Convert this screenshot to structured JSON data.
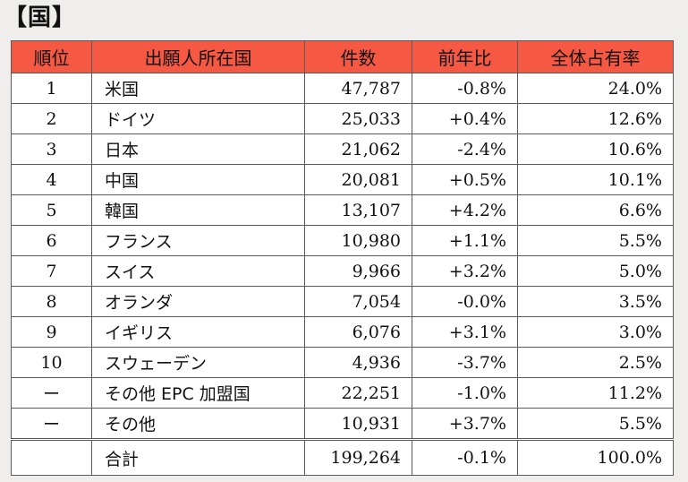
{
  "title": "【国】",
  "headers": [
    "順位",
    "出願人所在国",
    "件数",
    "前年比",
    "全体占有率"
  ],
  "rows": [
    {
      "rank": "1",
      "country": "米国",
      "count": "47,787",
      "yoy": "-0.8%",
      "share": "24.0%"
    },
    {
      "rank": "2",
      "country": "ドイツ",
      "count": "25,033",
      "yoy": "+0.4%",
      "share": "12.6%"
    },
    {
      "rank": "3",
      "country": "日本",
      "count": "21,062",
      "yoy": "-2.4%",
      "share": "10.6%"
    },
    {
      "rank": "4",
      "country": "中国",
      "count": "20,081",
      "yoy": "+0.5%",
      "share": "10.1%"
    },
    {
      "rank": "5",
      "country": "韓国",
      "count": "13,107",
      "yoy": "+4.2%",
      "share": "6.6%"
    },
    {
      "rank": "6",
      "country": "フランス",
      "count": "10,980",
      "yoy": "+1.1%",
      "share": "5.5%"
    },
    {
      "rank": "7",
      "country": "スイス",
      "count": "9,966",
      "yoy": "+3.2%",
      "share": "5.0%"
    },
    {
      "rank": "8",
      "country": "オランダ",
      "count": "7,054",
      "yoy": "-0.0%",
      "share": "3.5%"
    },
    {
      "rank": "9",
      "country": "イギリス",
      "count": "6,076",
      "yoy": "+3.1%",
      "share": "3.0%"
    },
    {
      "rank": "10",
      "country": "スウェーデン",
      "count": "4,936",
      "yoy": "-3.7%",
      "share": "2.5%"
    },
    {
      "rank": "ー",
      "country": "その他 EPC 加盟国",
      "count": "22,251",
      "yoy": "-1.0%",
      "share": "11.2%"
    },
    {
      "rank": "ー",
      "country": "その他",
      "count": "10,931",
      "yoy": "+3.7%",
      "share": "5.5%"
    }
  ],
  "total": {
    "rank": "",
    "country": "合計",
    "count": "199,264",
    "yoy": "-0.1%",
    "share": "100.0%"
  },
  "colors": {
    "header_bg": "#f55843",
    "page_bg": "#efeeec"
  }
}
